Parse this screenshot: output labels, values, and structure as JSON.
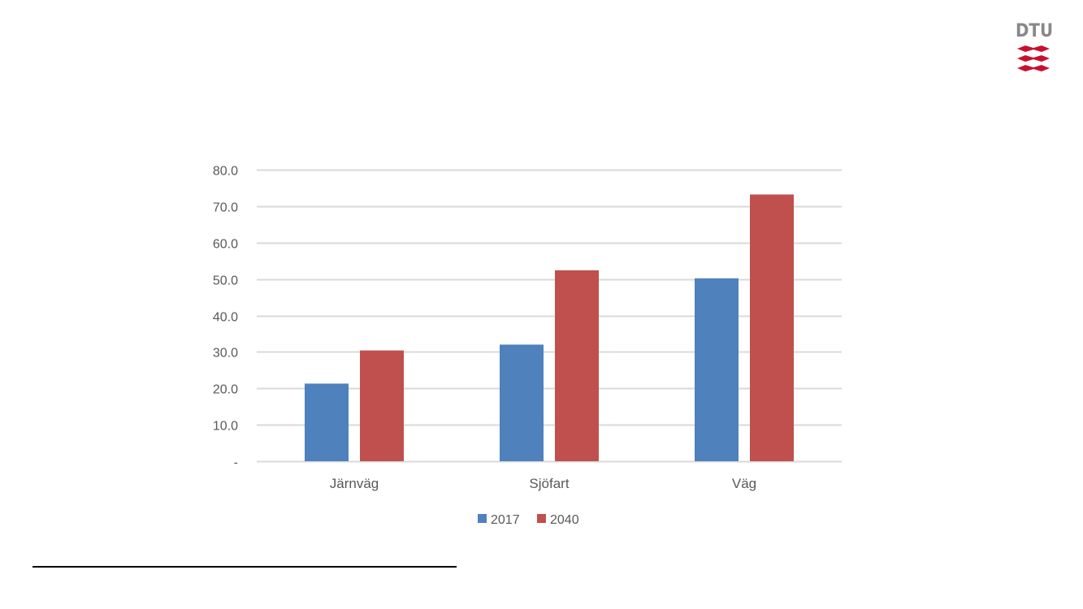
{
  "logo": {
    "text": "DTU",
    "icon": "dtu-logo-icon",
    "color": "#c8102e"
  },
  "chart_data": {
    "type": "bar",
    "title": "",
    "xlabel": "",
    "ylabel": "",
    "categories": [
      "Järnväg",
      "Sjöfart",
      "Väg"
    ],
    "series": [
      {
        "name": "2017",
        "values": [
          21.3,
          32.0,
          50.2
        ],
        "color": "#4f81bd"
      },
      {
        "name": "2040",
        "values": [
          30.4,
          52.4,
          73.2
        ],
        "color": "#c0504d"
      }
    ],
    "ylim": [
      0,
      80
    ],
    "yticks": [
      "-",
      "10.0",
      "20.0",
      "30.0",
      "40.0",
      "50.0",
      "60.0",
      "70.0",
      "80.0"
    ],
    "grid": true,
    "legend_position": "bottom"
  }
}
